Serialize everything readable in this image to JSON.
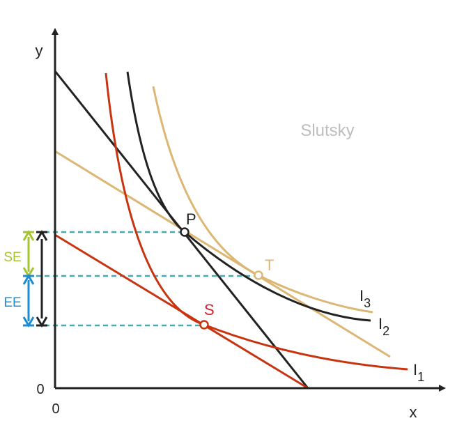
{
  "title": "Slutsky",
  "axes": {
    "y_label": "y",
    "x_label": "x",
    "y_origin": "0",
    "x_origin": "0"
  },
  "points": {
    "P": "P",
    "T": "T",
    "S": "S"
  },
  "curves": [
    {
      "main": "I",
      "sub": "3"
    },
    {
      "main": "I",
      "sub": "2"
    },
    {
      "main": "I",
      "sub": "1"
    }
  ],
  "effects": {
    "substitution": "SE",
    "income": "EE"
  }
}
